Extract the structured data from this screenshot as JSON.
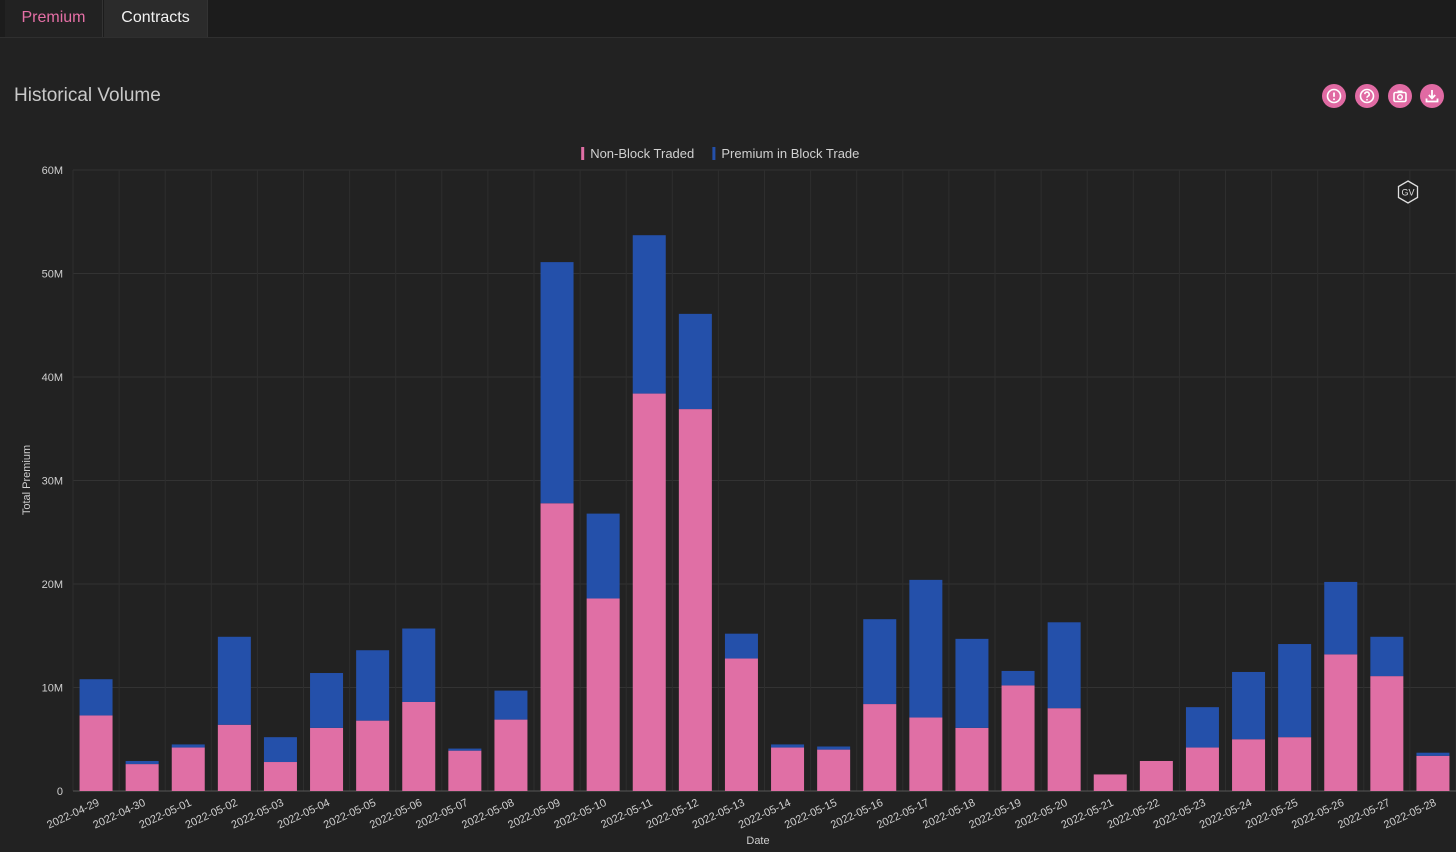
{
  "tabs": [
    {
      "label": "Premium",
      "active": true
    },
    {
      "label": "Contracts",
      "active": false
    }
  ],
  "panel": {
    "title": "Historical Volume",
    "toolbar_icons": [
      "alert-icon",
      "help-icon",
      "camera-icon",
      "download-icon"
    ]
  },
  "watermark": "GV",
  "colors": {
    "accent": "#e56fa6",
    "non_block": "#e06fa5",
    "block": "#2450aa",
    "background": "#222222"
  },
  "chart_data": {
    "type": "bar",
    "stacked": true,
    "xlabel": "Date",
    "ylabel": "Total Premium",
    "ylim": [
      0,
      60000000
    ],
    "yticks": [
      0,
      10000000,
      20000000,
      30000000,
      40000000,
      50000000,
      60000000
    ],
    "ytick_labels": [
      "0",
      "10M",
      "20M",
      "30M",
      "40M",
      "50M",
      "60M"
    ],
    "legend_position": "top-center",
    "grid": true,
    "categories": [
      "2022-04-29",
      "2022-04-30",
      "2022-05-01",
      "2022-05-02",
      "2022-05-03",
      "2022-05-04",
      "2022-05-05",
      "2022-05-06",
      "2022-05-07",
      "2022-05-08",
      "2022-05-09",
      "2022-05-10",
      "2022-05-11",
      "2022-05-12",
      "2022-05-13",
      "2022-05-14",
      "2022-05-15",
      "2022-05-16",
      "2022-05-17",
      "2022-05-18",
      "2022-05-19",
      "2022-05-20",
      "2022-05-21",
      "2022-05-22",
      "2022-05-23",
      "2022-05-24",
      "2022-05-25",
      "2022-05-26",
      "2022-05-27",
      "2022-05-28"
    ],
    "series": [
      {
        "name": "Non-Block Traded",
        "color": "#e06fa5",
        "values": [
          7300000,
          2600000,
          4200000,
          6400000,
          2800000,
          6100000,
          6800000,
          8600000,
          3900000,
          6900000,
          27800000,
          18600000,
          38400000,
          36900000,
          12800000,
          4200000,
          4000000,
          8400000,
          7100000,
          6100000,
          10200000,
          8000000,
          1600000,
          2900000,
          4200000,
          5000000,
          5200000,
          13200000,
          11100000,
          3400000
        ]
      },
      {
        "name": "Premium in Block Trade",
        "color": "#2450aa",
        "values": [
          3500000,
          300000,
          300000,
          8500000,
          2400000,
          5300000,
          6800000,
          7100000,
          200000,
          2800000,
          23300000,
          8200000,
          15300000,
          9200000,
          2400000,
          300000,
          300000,
          8200000,
          13300000,
          8600000,
          1400000,
          8300000,
          0,
          0,
          3900000,
          6500000,
          9000000,
          7000000,
          3800000,
          300000
        ]
      }
    ]
  }
}
